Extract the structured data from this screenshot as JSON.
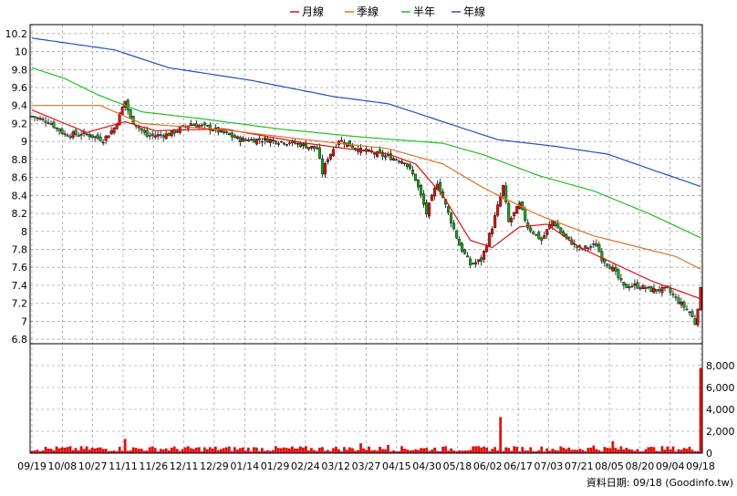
{
  "colors": {
    "background": "#ffffff",
    "grid": "#8c8c8c",
    "ma_month": "#e01010",
    "ma_quarter": "#e07020",
    "ma_halfyear": "#20c020",
    "ma_year": "#2050c0",
    "candle_up": "#e01010",
    "candle_down": "#20a020",
    "candle_outline": "#000000",
    "volume": "#e01010"
  },
  "chart_data": {
    "type": "candlestick",
    "legend": {
      "placement": "top-center",
      "items": [
        {
          "key": "ma_month",
          "label": "月線"
        },
        {
          "key": "ma_quarter",
          "label": "季線"
        },
        {
          "key": "ma_halfyear",
          "label": "半年"
        },
        {
          "key": "ma_year",
          "label": "年線"
        }
      ]
    },
    "price_axis": {
      "side": "left",
      "ylim": [
        6.75,
        10.3
      ],
      "ticks": [
        6.8,
        7,
        7.2,
        7.4,
        7.6,
        7.8,
        8,
        8.2,
        8.4,
        8.6,
        8.8,
        9,
        9.2,
        9.4,
        9.6,
        9.8,
        10,
        10.2
      ]
    },
    "volume_axis": {
      "side": "right",
      "ylim": [
        0,
        10000
      ],
      "ticks": [
        0,
        2000,
        4000,
        6000,
        8000
      ],
      "tick_labels": [
        "0",
        "2,000",
        "4,000",
        "6,000",
        "8,000"
      ]
    },
    "x_axis": {
      "num_bars": 245,
      "tick_positions": [
        0,
        13,
        26,
        40,
        53,
        66,
        80,
        93,
        106,
        120,
        133,
        146,
        160,
        173,
        186,
        200,
        213,
        226,
        239,
        244
      ],
      "tick_labels": [
        "09/19",
        "10/08",
        "10/27",
        "11/11",
        "11/26",
        "12/11",
        "12/29",
        "01/14",
        "01/29",
        "02/24",
        "03/12",
        "03/27",
        "04/15",
        "04/30",
        "05/18",
        "06/02",
        "06/17",
        "07/03",
        "07/21",
        "08/05",
        "08/20",
        "09/04",
        "09/18"
      ],
      "label_positions": [
        0,
        12,
        24,
        36,
        48,
        60,
        72,
        84,
        96,
        108,
        120,
        132,
        144,
        156,
        168,
        180,
        192,
        204,
        216,
        228,
        240,
        252,
        264
      ]
    },
    "price_anchors": [
      {
        "i": 0,
        "v": 9.28
      },
      {
        "i": 6,
        "v": 9.22
      },
      {
        "i": 12,
        "v": 9.08
      },
      {
        "i": 20,
        "v": 9.08
      },
      {
        "i": 26,
        "v": 9.02
      },
      {
        "i": 30,
        "v": 9.15
      },
      {
        "i": 34,
        "v": 9.45
      },
      {
        "i": 36,
        "v": 9.25
      },
      {
        "i": 42,
        "v": 9.06
      },
      {
        "i": 50,
        "v": 9.08
      },
      {
        "i": 58,
        "v": 9.2
      },
      {
        "i": 66,
        "v": 9.14
      },
      {
        "i": 76,
        "v": 9.02
      },
      {
        "i": 86,
        "v": 9.02
      },
      {
        "i": 96,
        "v": 8.98
      },
      {
        "i": 104,
        "v": 8.92
      },
      {
        "i": 106,
        "v": 8.65
      },
      {
        "i": 108,
        "v": 8.82
      },
      {
        "i": 112,
        "v": 9.02
      },
      {
        "i": 120,
        "v": 8.9
      },
      {
        "i": 130,
        "v": 8.83
      },
      {
        "i": 136,
        "v": 8.78
      },
      {
        "i": 140,
        "v": 8.58
      },
      {
        "i": 144,
        "v": 8.2
      },
      {
        "i": 148,
        "v": 8.55
      },
      {
        "i": 152,
        "v": 8.2
      },
      {
        "i": 156,
        "v": 7.85
      },
      {
        "i": 160,
        "v": 7.63
      },
      {
        "i": 164,
        "v": 7.68
      },
      {
        "i": 168,
        "v": 8.05
      },
      {
        "i": 172,
        "v": 8.5
      },
      {
        "i": 174,
        "v": 8.1
      },
      {
        "i": 178,
        "v": 8.3
      },
      {
        "i": 181,
        "v": 8.05
      },
      {
        "i": 186,
        "v": 7.9
      },
      {
        "i": 190,
        "v": 8.12
      },
      {
        "i": 194,
        "v": 7.95
      },
      {
        "i": 200,
        "v": 7.8
      },
      {
        "i": 206,
        "v": 7.85
      },
      {
        "i": 208,
        "v": 7.7
      },
      {
        "i": 212,
        "v": 7.58
      },
      {
        "i": 216,
        "v": 7.38
      },
      {
        "i": 220,
        "v": 7.4
      },
      {
        "i": 226,
        "v": 7.35
      },
      {
        "i": 232,
        "v": 7.35
      },
      {
        "i": 236,
        "v": 7.22
      },
      {
        "i": 240,
        "v": 7.1
      },
      {
        "i": 242,
        "v": 6.98
      },
      {
        "i": 244,
        "v": 7.35
      }
    ],
    "ma_month": [
      {
        "i": 0,
        "v": 9.35
      },
      {
        "i": 20,
        "v": 9.1
      },
      {
        "i": 34,
        "v": 9.22
      },
      {
        "i": 45,
        "v": 9.12
      },
      {
        "i": 70,
        "v": 9.14
      },
      {
        "i": 100,
        "v": 8.98
      },
      {
        "i": 130,
        "v": 8.86
      },
      {
        "i": 140,
        "v": 8.75
      },
      {
        "i": 150,
        "v": 8.4
      },
      {
        "i": 160,
        "v": 7.9
      },
      {
        "i": 168,
        "v": 7.82
      },
      {
        "i": 178,
        "v": 8.05
      },
      {
        "i": 188,
        "v": 8.08
      },
      {
        "i": 200,
        "v": 7.82
      },
      {
        "i": 214,
        "v": 7.62
      },
      {
        "i": 226,
        "v": 7.45
      },
      {
        "i": 244,
        "v": 7.25
      }
    ],
    "ma_quarter": [
      {
        "i": 0,
        "v": 9.4
      },
      {
        "i": 25,
        "v": 9.4
      },
      {
        "i": 40,
        "v": 9.2
      },
      {
        "i": 70,
        "v": 9.13
      },
      {
        "i": 100,
        "v": 9.02
      },
      {
        "i": 130,
        "v": 8.92
      },
      {
        "i": 150,
        "v": 8.75
      },
      {
        "i": 165,
        "v": 8.48
      },
      {
        "i": 185,
        "v": 8.18
      },
      {
        "i": 205,
        "v": 7.95
      },
      {
        "i": 222,
        "v": 7.82
      },
      {
        "i": 235,
        "v": 7.72
      },
      {
        "i": 244,
        "v": 7.58
      }
    ],
    "ma_halfyear": [
      {
        "i": 0,
        "v": 9.82
      },
      {
        "i": 12,
        "v": 9.7
      },
      {
        "i": 24,
        "v": 9.52
      },
      {
        "i": 40,
        "v": 9.33
      },
      {
        "i": 60,
        "v": 9.26
      },
      {
        "i": 90,
        "v": 9.14
      },
      {
        "i": 120,
        "v": 9.05
      },
      {
        "i": 150,
        "v": 8.98
      },
      {
        "i": 165,
        "v": 8.85
      },
      {
        "i": 185,
        "v": 8.62
      },
      {
        "i": 205,
        "v": 8.45
      },
      {
        "i": 225,
        "v": 8.2
      },
      {
        "i": 244,
        "v": 7.93
      }
    ],
    "ma_year": [
      {
        "i": 0,
        "v": 10.15
      },
      {
        "i": 30,
        "v": 10.02
      },
      {
        "i": 50,
        "v": 9.82
      },
      {
        "i": 80,
        "v": 9.68
      },
      {
        "i": 110,
        "v": 9.5
      },
      {
        "i": 130,
        "v": 9.42
      },
      {
        "i": 150,
        "v": 9.22
      },
      {
        "i": 170,
        "v": 9.02
      },
      {
        "i": 190,
        "v": 8.95
      },
      {
        "i": 210,
        "v": 8.86
      },
      {
        "i": 225,
        "v": 8.7
      },
      {
        "i": 244,
        "v": 8.5
      }
    ],
    "volume_spikes": [
      {
        "i": 34,
        "v": 1300
      },
      {
        "i": 120,
        "v": 900
      },
      {
        "i": 171,
        "v": 3300
      },
      {
        "i": 130,
        "v": 750
      },
      {
        "i": 205,
        "v": 700
      },
      {
        "i": 212,
        "v": 1100
      },
      {
        "i": 244,
        "v": 7800
      }
    ],
    "volume_base_range": [
      150,
      650
    ]
  },
  "footer": {
    "source": "資料日期: 09/18 (Goodinfo.tw)"
  }
}
